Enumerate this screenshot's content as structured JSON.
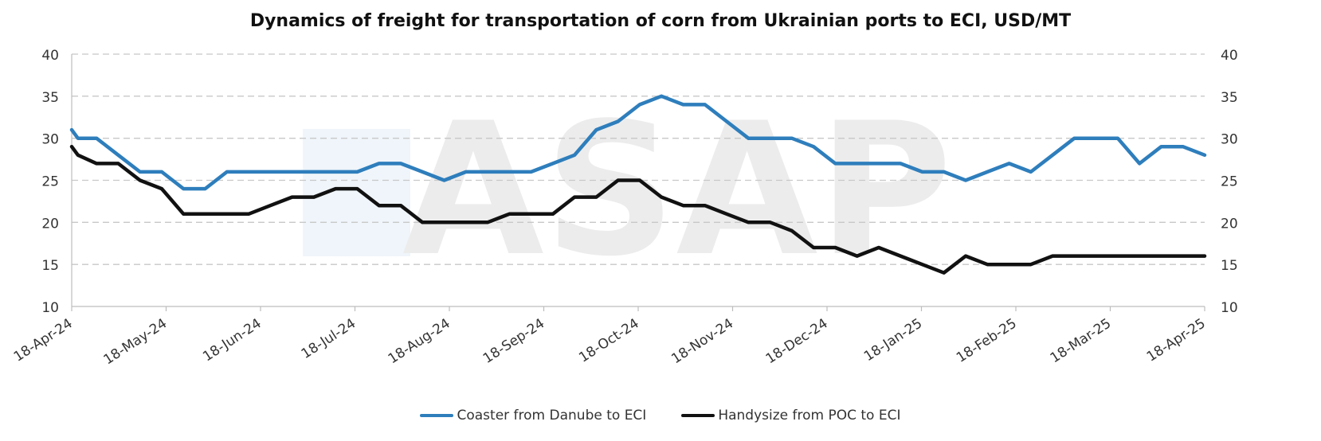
{
  "chart_data": {
    "type": "line",
    "title": "Dynamics of freight for transportation of corn from Ukrainian ports to ECI, USD/MT",
    "xlabel": "",
    "ylabel": "",
    "ylim": [
      10,
      40
    ],
    "yticks": [
      10,
      15,
      20,
      25,
      30,
      35,
      40
    ],
    "y_axis_right_mirror": true,
    "grid": "horizontal dashed",
    "legend_position": "bottom",
    "x_tick_labels": [
      "18-Apr-24",
      "18-May-24",
      "18-Jun-24",
      "18-Jul-24",
      "18-Aug-24",
      "18-Sep-24",
      "18-Oct-24",
      "18-Nov-24",
      "18-Dec-24",
      "18-Jan-25",
      "18-Feb-25",
      "18-Mar-25",
      "18-Apr-25"
    ],
    "watermark": "ASAP",
    "x": [
      "2024-04-18",
      "2024-04-20",
      "2024-04-26",
      "2024-05-03",
      "2024-05-10",
      "2024-05-17",
      "2024-05-24",
      "2024-05-31",
      "2024-06-07",
      "2024-06-14",
      "2024-06-21",
      "2024-06-28",
      "2024-07-05",
      "2024-07-12",
      "2024-07-19",
      "2024-07-26",
      "2024-08-02",
      "2024-08-09",
      "2024-08-16",
      "2024-08-23",
      "2024-08-30",
      "2024-09-06",
      "2024-09-13",
      "2024-09-20",
      "2024-09-27",
      "2024-10-04",
      "2024-10-11",
      "2024-10-18",
      "2024-10-25",
      "2024-11-01",
      "2024-11-08",
      "2024-11-15",
      "2024-11-22",
      "2024-11-29",
      "2024-12-06",
      "2024-12-13",
      "2024-12-20",
      "2024-12-27",
      "2025-01-03",
      "2025-01-10",
      "2025-01-17",
      "2025-01-24",
      "2025-01-31",
      "2025-02-07",
      "2025-02-14",
      "2025-02-21",
      "2025-02-28",
      "2025-03-07",
      "2025-03-14",
      "2025-03-21",
      "2025-03-28",
      "2025-04-04",
      "2025-04-11",
      "2025-04-18"
    ],
    "series": [
      {
        "name": "Coaster from Danube to ECI",
        "color": "#2e7ebc",
        "values": [
          31,
          30,
          30,
          28,
          26,
          26,
          24,
          24,
          26,
          26,
          26,
          26,
          26,
          26,
          26,
          27,
          27,
          26,
          25,
          26,
          26,
          26,
          26,
          27,
          28,
          31,
          32,
          34,
          35,
          34,
          34,
          32,
          30,
          30,
          30,
          29,
          27,
          27,
          27,
          27,
          26,
          26,
          25,
          26,
          27,
          26,
          28,
          30,
          30,
          30,
          27,
          29,
          29,
          28
        ]
      },
      {
        "name": "Handysize from POC to ECI",
        "color": "#111111",
        "values": [
          29,
          28,
          27,
          27,
          25,
          24,
          21,
          21,
          21,
          21,
          22,
          23,
          23,
          24,
          24,
          22,
          22,
          20,
          20,
          20,
          20,
          21,
          21,
          21,
          23,
          23,
          25,
          25,
          23,
          22,
          22,
          21,
          20,
          20,
          19,
          17,
          17,
          16,
          17,
          16,
          15,
          14,
          16,
          15,
          15,
          15,
          16,
          16,
          16,
          16,
          16,
          16,
          16,
          16
        ]
      }
    ]
  }
}
